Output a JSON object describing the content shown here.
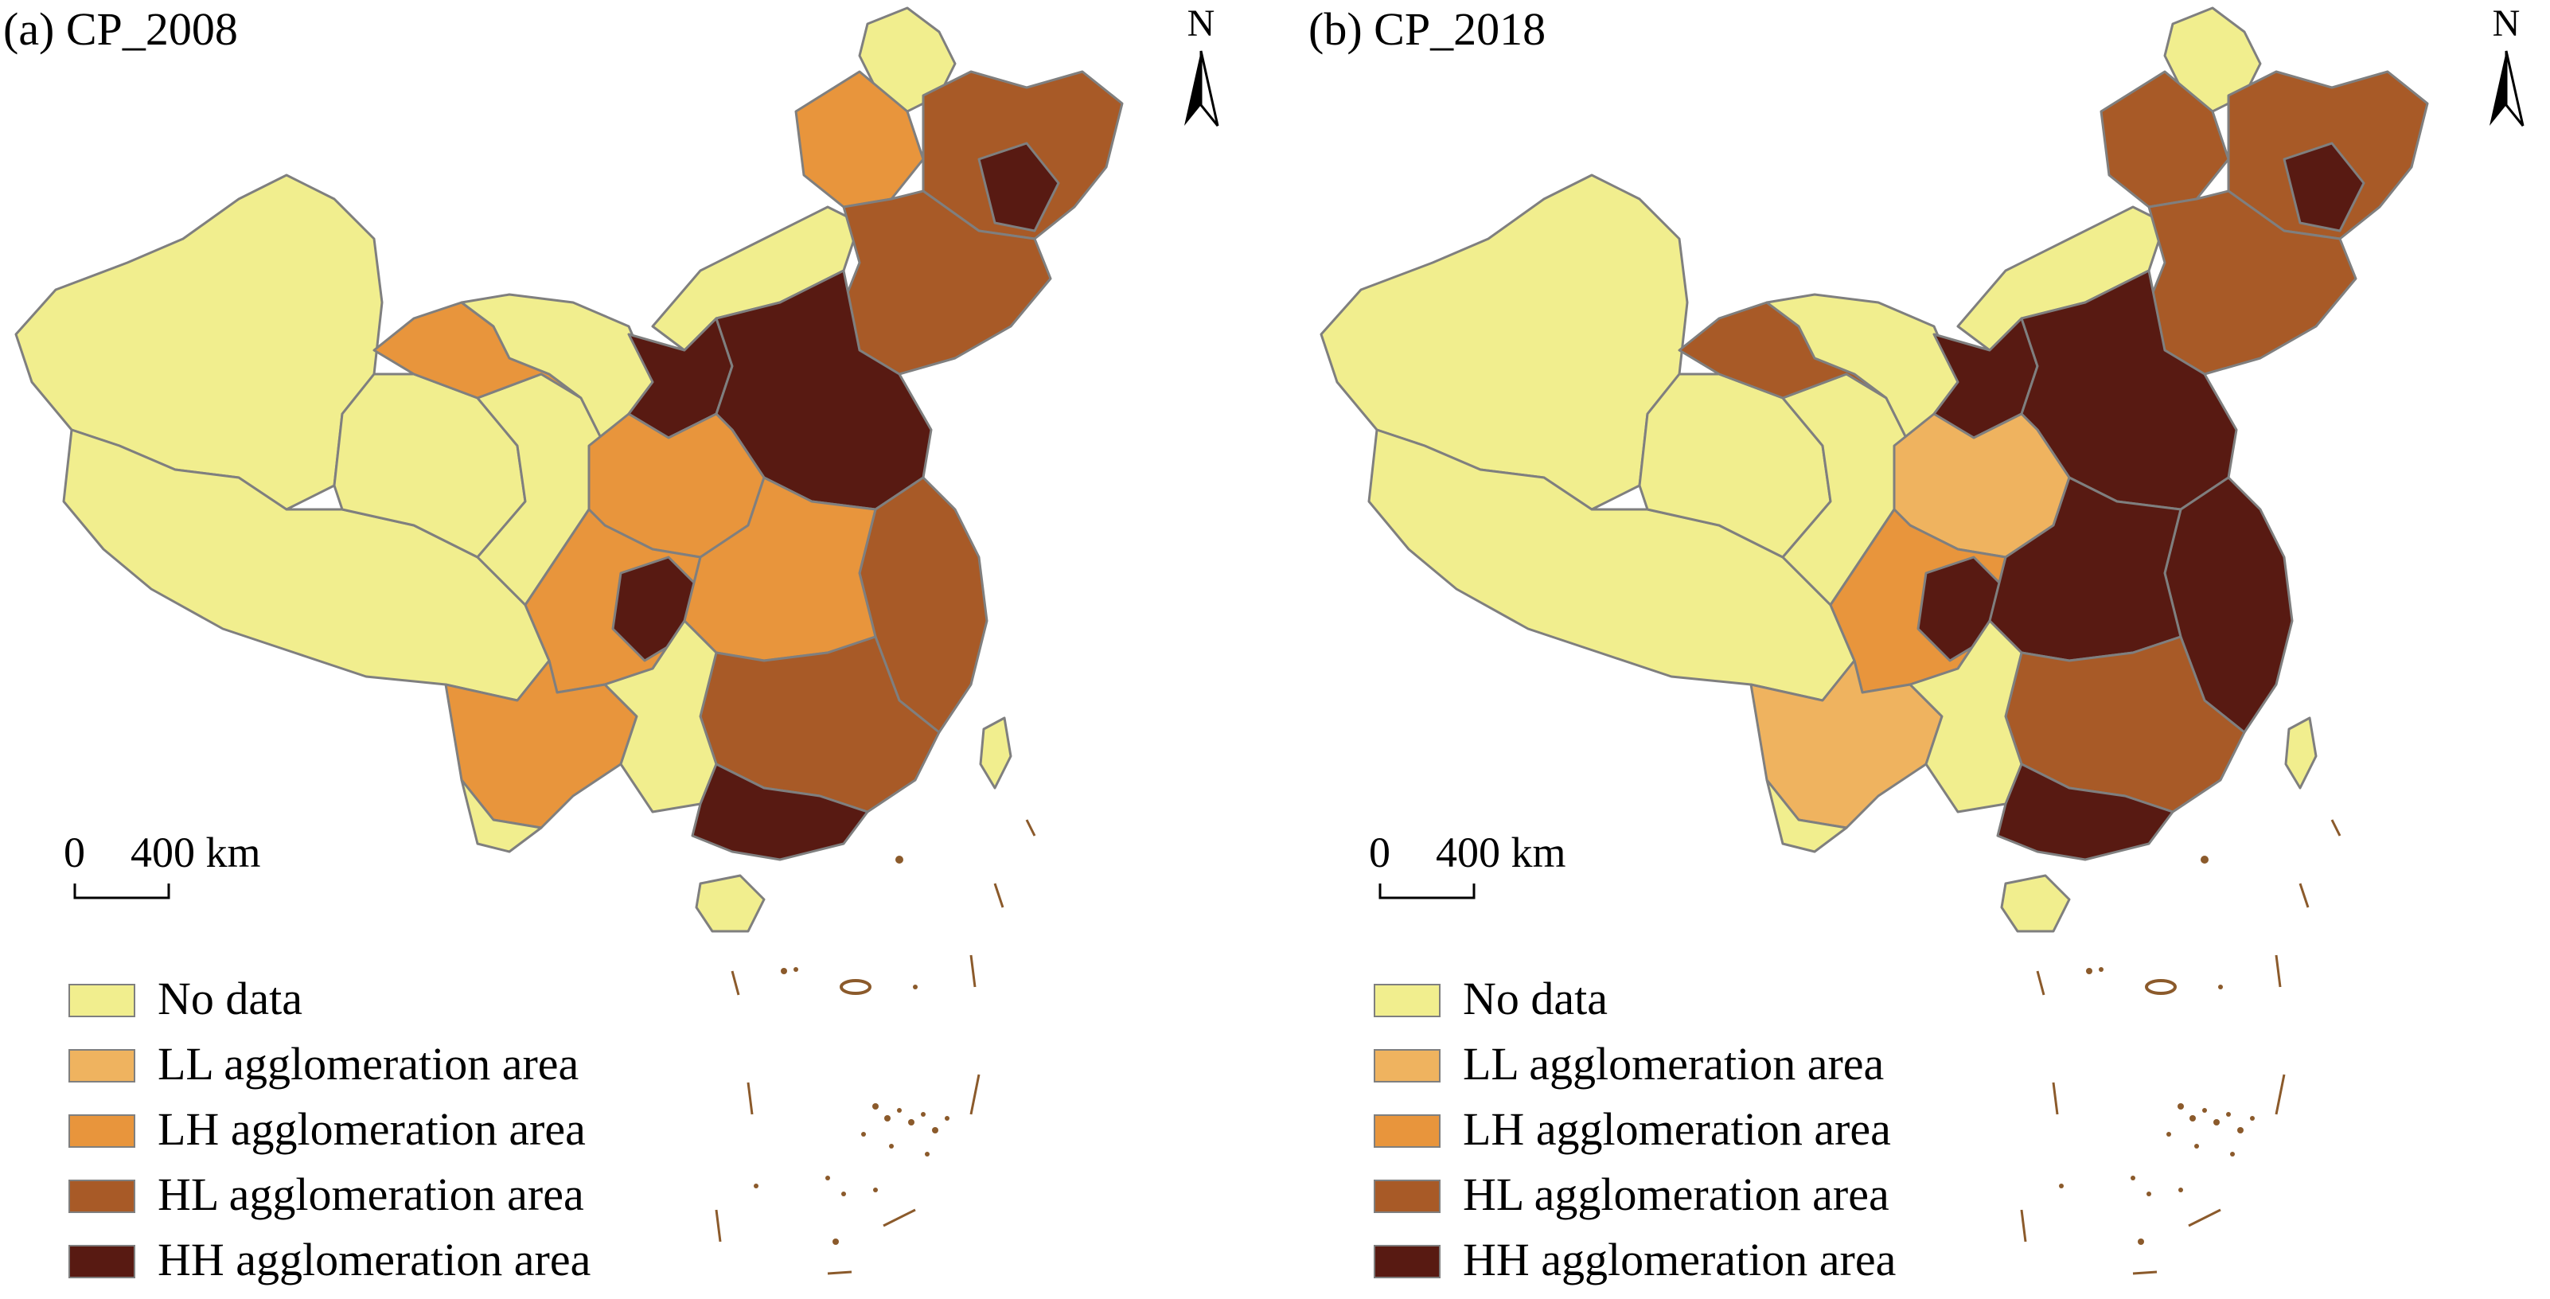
{
  "colors": {
    "No data": "#f1ee8e",
    "LL agglomeration area": "#efb35f",
    "LH agglomeration area": "#e8953c",
    "HL agglomeration area": "#a85a27",
    "HH agglomeration area": "#581a12",
    "boundary": "#7f7f7f",
    "islands": "#8b5a2b"
  },
  "legend": [
    {
      "label": "No data",
      "color": "#f1ee8e"
    },
    {
      "label": "LL agglomeration area",
      "color": "#efb35f"
    },
    {
      "label": "LH agglomeration area",
      "color": "#e8953c"
    },
    {
      "label": "HL agglomeration area",
      "color": "#a85a27"
    },
    {
      "label": "HH agglomeration area",
      "color": "#581a12"
    }
  ],
  "scale": {
    "zero": "0",
    "distance": "400 km"
  },
  "north_label": "N",
  "panels": [
    {
      "title": "(a) CP_2008",
      "region_classes": {
        "northwest": "No data",
        "tibet": "No data",
        "qinghai_west": "No data",
        "qinghai_east": "No data",
        "gansu_arm": "LH agglomeration area",
        "inner_mongolia_west": "No data",
        "northeast_top": "No data",
        "heilongjiang_west": "LH agglomeration area",
        "heilongjiang_east": "HL agglomeration area",
        "heilongjiang_core": "HH agglomeration area",
        "jilin_liaoning": "HL agglomeration area",
        "inner_mongolia_middle": "No data",
        "north_china_plain": "HH agglomeration area",
        "shanxi_shaanxi": "LH agglomeration area",
        "ordos": "HH agglomeration area",
        "east_coast": "HL agglomeration area",
        "sichuan_basin": "LH agglomeration area",
        "chongqing": "HH agglomeration area",
        "central": "LH agglomeration area",
        "southeast": "HL agglomeration area",
        "guangdong": "HH agglomeration area",
        "yunnan": "LH agglomeration area",
        "guangxi": "No data",
        "yunnan_south": "No data",
        "hainan": "No data",
        "taiwan": "No data"
      }
    },
    {
      "title": "(b) CP_2018",
      "region_classes": {
        "northwest": "No data",
        "tibet": "No data",
        "qinghai_west": "No data",
        "qinghai_east": "No data",
        "gansu_arm": "HL agglomeration area",
        "inner_mongolia_west": "No data",
        "northeast_top": "No data",
        "heilongjiang_west": "HL agglomeration area",
        "heilongjiang_east": "HL agglomeration area",
        "heilongjiang_core": "HH agglomeration area",
        "jilin_liaoning": "HL agglomeration area",
        "inner_mongolia_middle": "No data",
        "north_china_plain": "HH agglomeration area",
        "shanxi_shaanxi": "LL agglomeration area",
        "ordos": "HH agglomeration area",
        "east_coast": "HH agglomeration area",
        "sichuan_basin": "LH agglomeration area",
        "chongqing": "HH agglomeration area",
        "central": "HH agglomeration area",
        "southeast": "HL agglomeration area",
        "guangdong": "HH agglomeration area",
        "yunnan": "LL agglomeration area",
        "guangxi": "No data",
        "yunnan_south": "No data",
        "hainan": "No data",
        "taiwan": "No data"
      }
    }
  ]
}
